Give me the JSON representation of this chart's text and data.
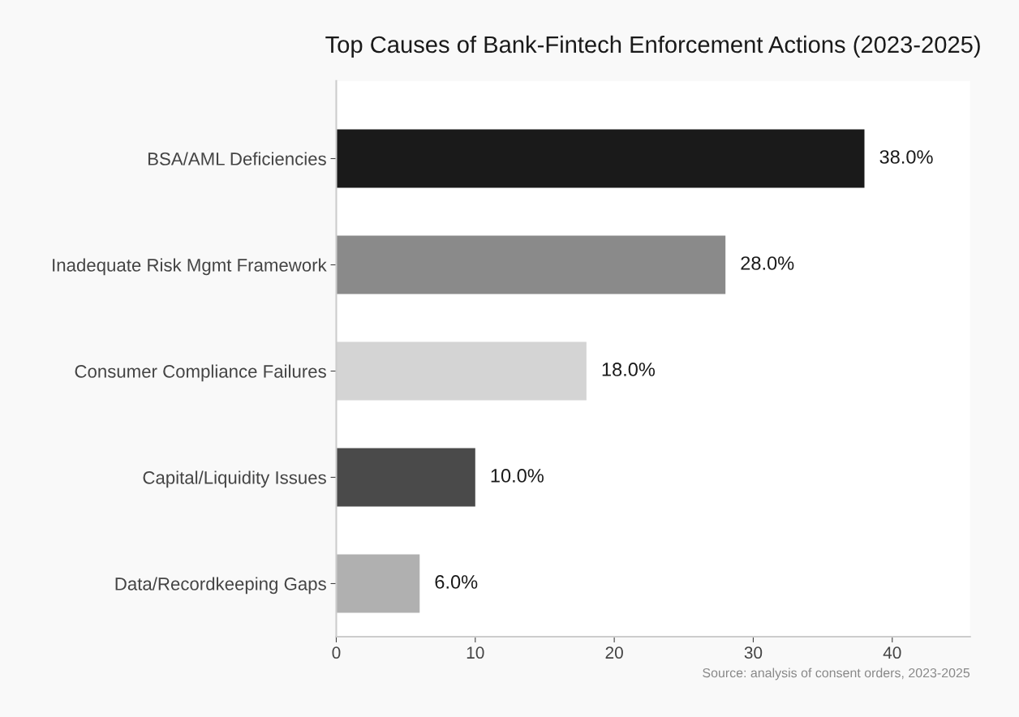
{
  "chart_data": {
    "type": "bar",
    "orientation": "horizontal",
    "title": "Top Causes of Bank-Fintech Enforcement Actions (2023-2025)",
    "categories": [
      "BSA/AML Deficiencies",
      "Inadequate Risk Mgmt Framework",
      "Consumer Compliance Failures",
      "Capital/Liquidity Issues",
      "Data/Recordkeeping Gaps"
    ],
    "values": [
      38,
      28,
      18,
      10,
      6
    ],
    "colors": [
      "#1a1a1a",
      "#8a8a8a",
      "#d4d4d4",
      "#4a4a4a",
      "#b0b0b0"
    ],
    "value_labels": [
      "38.0%",
      "28.0%",
      "18.0%",
      "10.0%",
      "6.0%"
    ],
    "xlim": [
      0,
      45.6
    ],
    "xticks": [
      0,
      10,
      20,
      30,
      40
    ],
    "grid": false,
    "legend": false,
    "annotations": [
      "Source: analysis of consent orders, 2023-2025"
    ]
  }
}
